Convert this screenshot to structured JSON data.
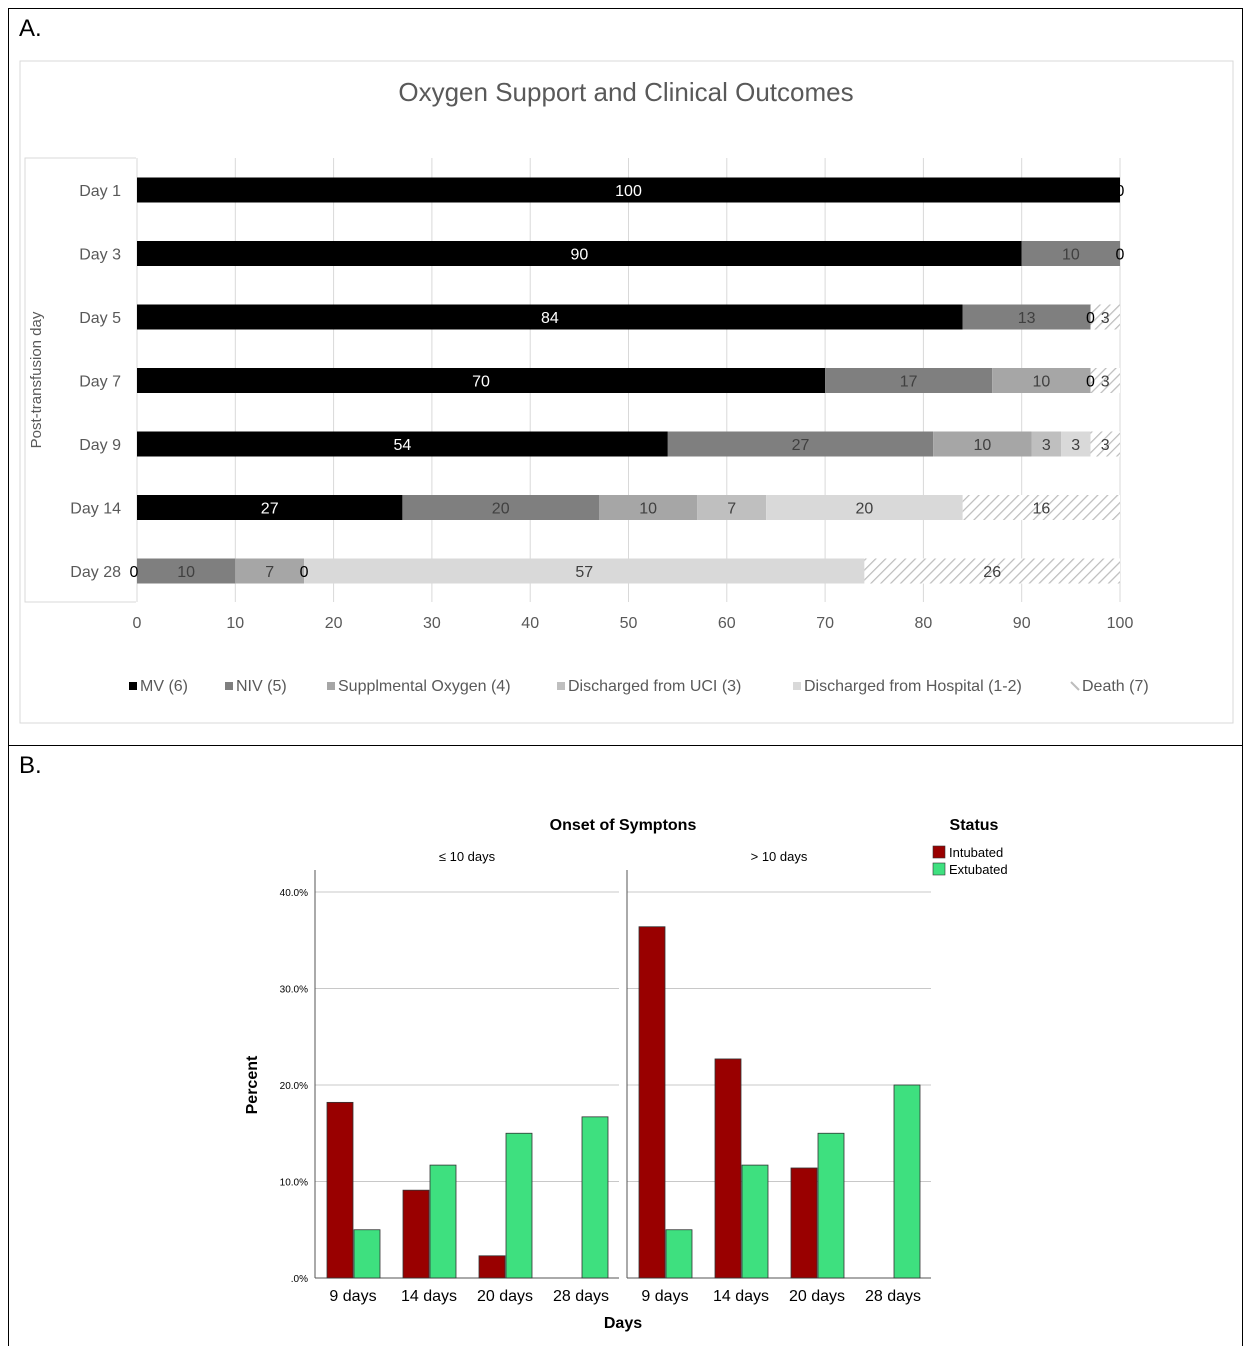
{
  "panel_a": {
    "label": "A."
  },
  "panel_b": {
    "label": "B."
  },
  "chart_data": [
    {
      "type": "bar",
      "orientation": "horizontal",
      "stacked": true,
      "title": "Oxygen Support and Clinical Outcomes",
      "ylabel": "Post-transfusion day",
      "xlabel": "",
      "xlim": [
        0,
        100
      ],
      "xticks": [
        0,
        10,
        20,
        30,
        40,
        50,
        60,
        70,
        80,
        90,
        100
      ],
      "grid": true,
      "legend": "bottom",
      "categories": [
        "Day 1",
        "Day 3",
        "Day 5",
        "Day 7",
        "Day 9",
        "Day 14",
        "Day 28"
      ],
      "series": [
        {
          "name": "MV (6)",
          "color": "#000000",
          "values": [
            100,
            90,
            84,
            70,
            54,
            27,
            0
          ]
        },
        {
          "name": "NIV (5)",
          "color": "#7f7f7f",
          "values": [
            0,
            10,
            13,
            17,
            27,
            20,
            10
          ]
        },
        {
          "name": "Supplmental Oxygen (4)",
          "color": "#a6a6a6",
          "values": [
            0,
            0,
            0,
            10,
            10,
            10,
            7
          ]
        },
        {
          "name": "Discharged from UCI (3)",
          "color": "#bfbfbf",
          "values": [
            0,
            0,
            0,
            0,
            3,
            7,
            0
          ]
        },
        {
          "name": "Discharged from Hospital (1-2)",
          "color": "#d9d9d9",
          "values": [
            0,
            0,
            0,
            0,
            3,
            20,
            57
          ]
        },
        {
          "name": "Death (7)",
          "color": "#d0d0d0",
          "pattern": "hatch",
          "values": [
            0,
            0,
            3,
            3,
            3,
            16,
            26
          ]
        }
      ],
      "data_labels": [
        [
          "100",
          "0"
        ],
        [
          "90",
          "10",
          "0"
        ],
        [
          "84",
          "13",
          "0",
          "3"
        ],
        [
          "70",
          "17",
          "10",
          "0",
          "3"
        ],
        [
          "54",
          "27",
          "10",
          "3",
          "3",
          "3"
        ],
        [
          "27",
          "20",
          "10",
          "7",
          "20",
          "16"
        ],
        [
          "0",
          "10",
          "7",
          "0",
          "57",
          "26"
        ]
      ]
    },
    {
      "type": "bar",
      "orientation": "vertical",
      "grouped": true,
      "panel_title": "Onset of Symptons",
      "legend_title": "Status",
      "legend": "top-right",
      "xlabel": "Days",
      "ylabel": "Percent",
      "ylim": [
        0,
        40
      ],
      "yticks": [
        "40.0%",
        "30.0%",
        "20.0%",
        "10.0%",
        ".0%"
      ],
      "ytick_values": [
        40,
        30,
        20,
        10,
        0
      ],
      "grid": true,
      "categories": [
        "9 days",
        "14 days",
        "20 days",
        "28 days"
      ],
      "series_names": [
        "Intubated",
        "Extubated"
      ],
      "series_colors": [
        "#990000",
        "#3ee07f"
      ],
      "facets": [
        {
          "name": "≤ 10 days",
          "series": [
            {
              "name": "Intubated",
              "values": [
                18.2,
                9.1,
                2.3,
                0
              ]
            },
            {
              "name": "Extubated",
              "values": [
                5.0,
                11.7,
                15.0,
                16.7
              ]
            }
          ]
        },
        {
          "name": "> 10 days",
          "series": [
            {
              "name": "Intubated",
              "values": [
                36.4,
                22.7,
                11.4,
                0
              ]
            },
            {
              "name": "Extubated",
              "values": [
                5.0,
                11.7,
                15.0,
                20.0
              ]
            }
          ]
        }
      ]
    }
  ]
}
